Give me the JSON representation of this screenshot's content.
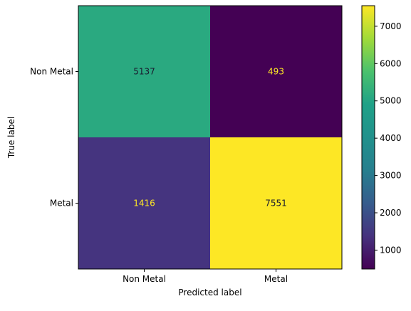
{
  "chart_data": {
    "type": "heatmap",
    "title": "",
    "xlabel": "Predicted label",
    "ylabel": "True label",
    "x_categories": [
      "Non Metal",
      "Metal"
    ],
    "y_categories": [
      "Non Metal",
      "Metal"
    ],
    "values": [
      [
        5137,
        493
      ],
      [
        1416,
        7551
      ]
    ],
    "colormap": "viridis",
    "colorbar": {
      "min": 493,
      "max": 7551,
      "ticks": [
        1000,
        2000,
        3000,
        4000,
        5000,
        6000,
        7000
      ]
    },
    "text_colors": {
      "on_dark": "#fde725",
      "on_light": "#1a1a2e"
    },
    "grid": false
  }
}
